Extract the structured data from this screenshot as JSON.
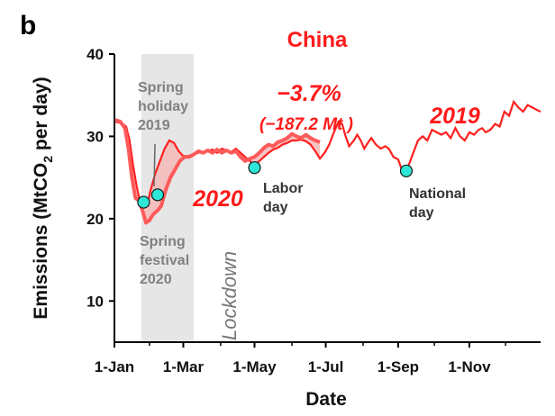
{
  "panel_label": "b",
  "chart_data": {
    "type": "line",
    "title": "China",
    "xlabel": "Date",
    "ylabel_main": "Emissions (MtCO",
    "ylabel_sub": "2",
    "ylabel_end": " per day)",
    "ylim": [
      5,
      40
    ],
    "xlim": [
      0,
      365
    ],
    "y_ticks": [
      10,
      20,
      30,
      40
    ],
    "x_ticks": [
      {
        "label": "1-Jan",
        "day": 0
      },
      {
        "label": "1-Mar",
        "day": 59
      },
      {
        "label": "1-May",
        "day": 120
      },
      {
        "label": "1-Jul",
        "day": 181
      },
      {
        "label": "1-Sep",
        "day": 243
      },
      {
        "label": "1-Nov",
        "day": 304
      }
    ],
    "grid": false,
    "colors": {
      "line_2020": "#ff5a5a",
      "line_2019": "#ff2020",
      "fill": "#f5b8b8",
      "shade": "#e6e6e6",
      "marker": "#2ee6d6"
    },
    "lockdown_period": {
      "label": "Lockdown",
      "start_day": 23,
      "end_day": 68
    },
    "series": [
      {
        "name": "2019",
        "points": [
          [
            0,
            31.8
          ],
          [
            6,
            31.6
          ],
          [
            10,
            31.2
          ],
          [
            13,
            29.5
          ],
          [
            16,
            26.5
          ],
          [
            19,
            24.0
          ],
          [
            22,
            22.0
          ],
          [
            25,
            21.5
          ],
          [
            28,
            21.6
          ],
          [
            31,
            23.5
          ],
          [
            35,
            25.5
          ],
          [
            39,
            27.0
          ],
          [
            43,
            28.5
          ],
          [
            47,
            29.5
          ],
          [
            51,
            29.2
          ],
          [
            55,
            28.2
          ],
          [
            59,
            27.6
          ],
          [
            63,
            27.6
          ],
          [
            67,
            27.8
          ],
          [
            72,
            28.0
          ],
          [
            76,
            28.1
          ],
          [
            80,
            28.2
          ],
          [
            84,
            28.4
          ],
          [
            88,
            28.0
          ],
          [
            92,
            28.5
          ],
          [
            96,
            28.3
          ],
          [
            100,
            28.1
          ],
          [
            104,
            28.5
          ],
          [
            108,
            28.0
          ],
          [
            112,
            27.5
          ],
          [
            116,
            27.0
          ],
          [
            120,
            26.5
          ],
          [
            124,
            27.0
          ],
          [
            128,
            27.5
          ],
          [
            132,
            28.0
          ],
          [
            136,
            28.4
          ],
          [
            140,
            28.6
          ],
          [
            144,
            29.0
          ],
          [
            148,
            29.2
          ],
          [
            152,
            29.5
          ],
          [
            156,
            29.5
          ],
          [
            160,
            29.6
          ],
          [
            164,
            29.4
          ],
          [
            168,
            29.0
          ],
          [
            172,
            28.2
          ],
          [
            176,
            27.3
          ],
          [
            180,
            28.0
          ],
          [
            184,
            29.0
          ],
          [
            188,
            30.5
          ],
          [
            192,
            31.8
          ],
          [
            195,
            31.5
          ],
          [
            198,
            30.0
          ],
          [
            201,
            28.8
          ],
          [
            205,
            29.5
          ],
          [
            208,
            30.2
          ],
          [
            211,
            29.5
          ],
          [
            214,
            28.5
          ],
          [
            217,
            29.2
          ],
          [
            220,
            29.8
          ],
          [
            224,
            29.0
          ],
          [
            228,
            28.5
          ],
          [
            232,
            28.8
          ],
          [
            235,
            28.5
          ],
          [
            239,
            27.5
          ],
          [
            243,
            27.2
          ],
          [
            246,
            26.0
          ],
          [
            249,
            25.8
          ],
          [
            252,
            26.5
          ],
          [
            256,
            28.0
          ],
          [
            260,
            29.5
          ],
          [
            264,
            30.0
          ],
          [
            268,
            29.5
          ],
          [
            272,
            30.8
          ],
          [
            276,
            30.5
          ],
          [
            280,
            30.2
          ],
          [
            284,
            30.5
          ],
          [
            288,
            29.8
          ],
          [
            292,
            31.0
          ],
          [
            296,
            30.0
          ],
          [
            300,
            29.5
          ],
          [
            304,
            30.5
          ],
          [
            308,
            30.2
          ],
          [
            312,
            30.8
          ],
          [
            315,
            31.0
          ],
          [
            318,
            30.5
          ],
          [
            322,
            30.8
          ],
          [
            326,
            31.5
          ],
          [
            330,
            31.2
          ],
          [
            334,
            33.0
          ],
          [
            338,
            32.5
          ],
          [
            342,
            34.2
          ],
          [
            346,
            33.5
          ],
          [
            350,
            33.0
          ],
          [
            354,
            33.8
          ],
          [
            358,
            33.5
          ],
          [
            362,
            33.2
          ],
          [
            365,
            33.0
          ]
        ]
      },
      {
        "name": "2020",
        "points": [
          [
            0,
            32.0
          ],
          [
            5,
            31.8
          ],
          [
            9,
            31.0
          ],
          [
            12,
            28.5
          ],
          [
            15,
            25.0
          ],
          [
            18,
            22.5
          ],
          [
            21,
            22.2
          ],
          [
            24,
            21.0
          ],
          [
            27,
            19.5
          ],
          [
            30,
            19.8
          ],
          [
            33,
            20.5
          ],
          [
            37,
            21.0
          ],
          [
            40,
            21.5
          ],
          [
            44,
            23.5
          ],
          [
            48,
            25.0
          ],
          [
            52,
            26.0
          ],
          [
            56,
            27.0
          ],
          [
            60,
            27.5
          ],
          [
            64,
            27.5
          ],
          [
            68,
            27.8
          ],
          [
            72,
            28.2
          ],
          [
            76,
            28.0
          ],
          [
            80,
            28.3
          ],
          [
            84,
            28.0
          ],
          [
            88,
            28.4
          ],
          [
            92,
            28.0
          ],
          [
            96,
            28.3
          ],
          [
            100,
            28.0
          ],
          [
            104,
            28.2
          ],
          [
            108,
            27.5
          ],
          [
            112,
            27.0
          ],
          [
            116,
            27.3
          ],
          [
            120,
            27.5
          ],
          [
            124,
            28.0
          ],
          [
            128,
            28.6
          ],
          [
            132,
            29.0
          ],
          [
            136,
            28.8
          ],
          [
            140,
            29.3
          ],
          [
            144,
            29.5
          ],
          [
            148,
            29.8
          ],
          [
            152,
            30.3
          ],
          [
            156,
            30.0
          ],
          [
            160,
            29.8
          ],
          [
            164,
            30.2
          ],
          [
            168,
            29.8
          ],
          [
            172,
            29.5
          ],
          [
            176,
            29.3
          ]
        ]
      }
    ],
    "markers": [
      {
        "day": 37,
        "value": 22.9,
        "label_lines": [
          "Spring",
          "holiday",
          "2019"
        ]
      },
      {
        "day": 25,
        "value": 22.0,
        "label_lines": [
          "Spring",
          "festival",
          "2020"
        ]
      },
      {
        "day": 120,
        "value": 26.2,
        "label_lines": [
          "Labor",
          "day"
        ]
      },
      {
        "day": 250,
        "value": 25.8,
        "label_lines": [
          "National",
          "day"
        ]
      }
    ],
    "annotations": {
      "pct_change": "−3.7%",
      "mt_change": "(−187.2 Mt )",
      "label_2019": "2019",
      "label_2020": "2020"
    }
  }
}
